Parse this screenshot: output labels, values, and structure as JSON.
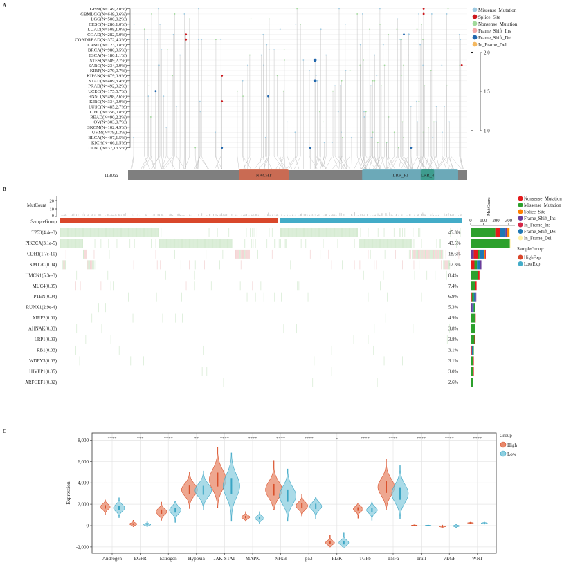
{
  "panels": {
    "a": "A",
    "b": "B",
    "c": "C"
  },
  "chart_data": [
    {
      "type": "lollipop",
      "protein_length_label": "1130aa",
      "cancer_types": [
        "GBM(N=149,2.0%)",
        "GBMLGG(N=649,0.6%)",
        "LGG(N=500,0.2%)",
        "CESC(N=286,1.0%)",
        "LUAD(N=508,1.0%)",
        "COAD(N=282,5.0%)",
        "COADREAD(N=372,4.3%)",
        "LAML(N=123,0.8%)",
        "BRCA(N=980,0.5%)",
        "ESCA(N=180,1.1%)",
        "STES(N=589,2.7%)",
        "SARC(N=234,0.9%)",
        "KIRP(N=279,0.7%)",
        "KIPAN(N=679,0.9%)",
        "STAD(N=409,3.4%)",
        "PRAD(N=492,0.2%)",
        "UCEC(N=175,5.7%)",
        "HNSC(N=498,2.6%)",
        "KIRC(N=334,0.9%)",
        "LUSC(N=485,2.7%)",
        "LIHC(N=356,0.8%)",
        "READ(N=90,2.2%)",
        "OV(N=303,0.7%)",
        "SKCM(N=102,4.9%)",
        "UVM(N=79,1.3%)",
        "BLCA(N=407,1.5%)",
        "KICH(N=66,1.5%)",
        "DLBC(N=37,13.5%)"
      ],
      "domains": [
        {
          "name": "NACHT",
          "start": 370,
          "end": 535,
          "color": "#d2694f"
        },
        {
          "name": "LRR_RI",
          "start": 780,
          "end": 1100,
          "color": "#6aaebf"
        },
        {
          "name": "LRR_4",
          "start": 975,
          "end": 1020,
          "color": "#3a9a8a"
        }
      ],
      "protein_length": 1130,
      "legend": [
        {
          "label": "Missense_Mutation",
          "color": "#9ecae1"
        },
        {
          "label": "Splice_Site",
          "color": "#cb181d"
        },
        {
          "label": "Nonsense_Mutation",
          "color": "#a1d99b"
        },
        {
          "label": "Frame_Shift_Ins",
          "color": "#f4a6a6"
        },
        {
          "label": "Frame_Shift_Del",
          "color": "#2166ac"
        },
        {
          "label": "In_Frame_Del",
          "color": "#f4b860"
        }
      ],
      "size_scale": {
        "ticks": [
          "2.0",
          "1.5",
          "1.0"
        ]
      },
      "highlighted_mutations": [
        {
          "row": 0,
          "aa": 985,
          "type": "Splice_Site"
        },
        {
          "row": 1,
          "aa": 985,
          "type": "Splice_Site"
        },
        {
          "row": 5,
          "aa": 193,
          "type": "Splice_Site"
        },
        {
          "row": 6,
          "aa": 193,
          "type": "Splice_Site"
        },
        {
          "row": 5,
          "aa": 919,
          "type": "Frame_Shift_Del"
        },
        {
          "row": 5,
          "aa": 935,
          "type": "Missense_Mutation"
        },
        {
          "row": 10,
          "aa": 623,
          "type": "Frame_Shift_Del",
          "count": 2
        },
        {
          "row": 14,
          "aa": 623,
          "type": "Frame_Shift_Del",
          "count": 2
        },
        {
          "row": 11,
          "aa": 1112,
          "type": "Splice_Site"
        },
        {
          "row": 13,
          "aa": 313,
          "type": "Splice_Site"
        },
        {
          "row": 18,
          "aa": 313,
          "type": "Splice_Site"
        },
        {
          "row": 16,
          "aa": 92,
          "type": "Frame_Shift_Del"
        },
        {
          "row": 17,
          "aa": 467,
          "type": "Frame_Shift_Del"
        },
        {
          "row": 27,
          "aa": 313,
          "type": "Frame_Shift_Del"
        },
        {
          "row": 27,
          "aa": 607,
          "type": "Frame_Shift_Del"
        },
        {
          "row": 27,
          "aa": 943,
          "type": "Frame_Shift_Del"
        }
      ]
    },
    {
      "type": "oncoprint",
      "mutcount_label": "MutCount",
      "mutcount_ticks": [
        "20",
        "10",
        "0"
      ],
      "samplegroup_label": "SampleGroup",
      "genes": [
        {
          "label": "TP53(4.4e-3)",
          "pct": "45.3%",
          "counts": {
            "Missense_Mutation": 195,
            "Nonsense_Mutation": 40,
            "Frame_Shift_Del": 40,
            "Frame_Shift_Ins": 15,
            "Splice_Site": 15,
            "In_Frame_Del": 5
          }
        },
        {
          "label": "PIK3CA(3.1e-5)",
          "pct": "43.5%",
          "counts": {
            "Missense_Mutation": 310,
            "In_Frame_Del": 5
          }
        },
        {
          "label": "CDH1(1.7e-10)",
          "pct": "18.6%",
          "counts": {
            "Frame_Shift_Ins": 25,
            "Nonsense_Mutation": 30,
            "Missense_Mutation": 15,
            "Frame_Shift_Del": 35,
            "Splice_Site": 10,
            "In_Frame_Ins": 5
          }
        },
        {
          "label": "KMT2C(0.04)",
          "pct": "12.3%",
          "counts": {
            "Nonsense_Mutation": 30,
            "Missense_Mutation": 20,
            "Frame_Shift_Del": 25,
            "Frame_Shift_Ins": 10
          }
        },
        {
          "label": "HMCN1(5.3e-3)",
          "pct": "8.4%",
          "counts": {
            "Missense_Mutation": 60,
            "Nonsense_Mutation": 10
          }
        },
        {
          "label": "MUC4(0.05)",
          "pct": "7.4%",
          "counts": {
            "Missense_Mutation": 35,
            "Nonsense_Mutation": 12
          }
        },
        {
          "label": "PTEN(0.04)",
          "pct": "6.9%",
          "counts": {
            "Nonsense_Mutation": 10,
            "Missense_Mutation": 15,
            "Frame_Shift_Del": 15,
            "Frame_Shift_Ins": 5
          }
        },
        {
          "label": "RUNX1(2.9e-4)",
          "pct": "5.3%",
          "counts": {
            "Frame_Shift_Ins": 15,
            "Frame_Shift_Del": 10,
            "Missense_Mutation": 10
          }
        },
        {
          "label": "XIRP2(0.01)",
          "pct": "4.9%",
          "counts": {
            "Missense_Mutation": 35,
            "Nonsense_Mutation": 5
          }
        },
        {
          "label": "AHNAK(0.03)",
          "pct": "3.8%",
          "counts": {
            "Missense_Mutation": 38
          }
        },
        {
          "label": "LRP1(0.03)",
          "pct": "3.8%",
          "counts": {
            "Missense_Mutation": 30,
            "Nonsense_Mutation": 5
          }
        },
        {
          "label": "RB1(0.03)",
          "pct": "3.1%",
          "counts": {
            "Nonsense_Mutation": 10,
            "Frame_Shift_Del": 10,
            "Missense_Mutation": 5
          }
        },
        {
          "label": "WDFY3(0.03)",
          "pct": "3.1%",
          "counts": {
            "Missense_Mutation": 22,
            "Nonsense_Mutation": 3
          }
        },
        {
          "label": "HIVEP1(0.05)",
          "pct": "3.0%",
          "counts": {
            "Missense_Mutation": 20,
            "Nonsense_Mutation": 5
          }
        },
        {
          "label": "ARFGEF1(0.02)",
          "pct": "2.6%",
          "counts": {
            "Missense_Mutation": 18
          }
        }
      ],
      "bar_axis": {
        "label": "MutCount",
        "ticks": [
          0,
          100,
          200,
          300
        ]
      },
      "legend": [
        {
          "label": "Nonsense_Mutation",
          "color": "#e41a1c"
        },
        {
          "label": "Missense_Mutation",
          "color": "#2ca02c"
        },
        {
          "label": "Splice_Site",
          "color": "#ff7f00"
        },
        {
          "label": "Frame_Shift_Ins",
          "color": "#6a3d9a"
        },
        {
          "label": "In_Frame_Ins",
          "color": "#d62748"
        },
        {
          "label": "Frame_Shift_Del",
          "color": "#1f78b4"
        },
        {
          "label": "In_Frame_Del",
          "color": "#fff2a8"
        }
      ],
      "group_legend": {
        "title": "SampleGroup:",
        "items": [
          {
            "label": "HighExp",
            "color": "#d9472b"
          },
          {
            "label": "LowExp",
            "color": "#43acc8"
          }
        ]
      }
    },
    {
      "type": "violin",
      "ylabel": "Expression",
      "ylim": [
        -2300,
        8500
      ],
      "yticks": [
        {
          "v": 8000,
          "t": "8,000"
        },
        {
          "v": 6000,
          "t": "6,000"
        },
        {
          "v": 4000,
          "t": "4,000"
        },
        {
          "v": 2000,
          "t": "2,000"
        },
        {
          "v": 0,
          "t": "0"
        },
        {
          "v": -2000,
          "t": "-2,000"
        }
      ],
      "grid": true,
      "legend": {
        "title": "Group",
        "placement": "right",
        "items": [
          {
            "label": "High",
            "color": "#e8896b"
          },
          {
            "label": "Low",
            "color": "#8ecfe0"
          }
        ]
      },
      "categories": [
        "Androgen",
        "EGFR",
        "Estrogen",
        "Hypoxia",
        "JAK-STAT",
        "MAPK",
        "NFkB",
        "p53",
        "PI3K",
        "TGFb",
        "TNFa",
        "Trail",
        "VEGF",
        "WNT"
      ],
      "significance": [
        "****",
        "***",
        "****",
        "**",
        "****",
        "****",
        "****",
        "****",
        "-",
        "****",
        "****",
        "****",
        "****",
        "****"
      ],
      "series": [
        {
          "name": "High",
          "median": [
            1750,
            150,
            1300,
            3350,
            4300,
            800,
            3350,
            1850,
            -1600,
            1550,
            3600,
            30,
            -80,
            250
          ],
          "min": [
            1000,
            -100,
            500,
            1600,
            1700,
            400,
            1500,
            900,
            -2000,
            700,
            1500,
            -30,
            -200,
            180
          ],
          "max": [
            2400,
            500,
            2200,
            5000,
            7300,
            1300,
            6100,
            2900,
            -900,
            2100,
            6200,
            80,
            50,
            320
          ]
        },
        {
          "name": "Low",
          "median": [
            1650,
            100,
            1450,
            3300,
            3700,
            700,
            2800,
            1800,
            -1600,
            1450,
            3000,
            20,
            -30,
            230
          ],
          "min": [
            750,
            -100,
            300,
            1500,
            400,
            200,
            400,
            600,
            -2100,
            500,
            600,
            -20,
            -200,
            130
          ],
          "max": [
            2600,
            400,
            2300,
            5100,
            6800,
            1300,
            5300,
            2700,
            -700,
            2200,
            5600,
            60,
            150,
            330
          ]
        }
      ]
    }
  ]
}
